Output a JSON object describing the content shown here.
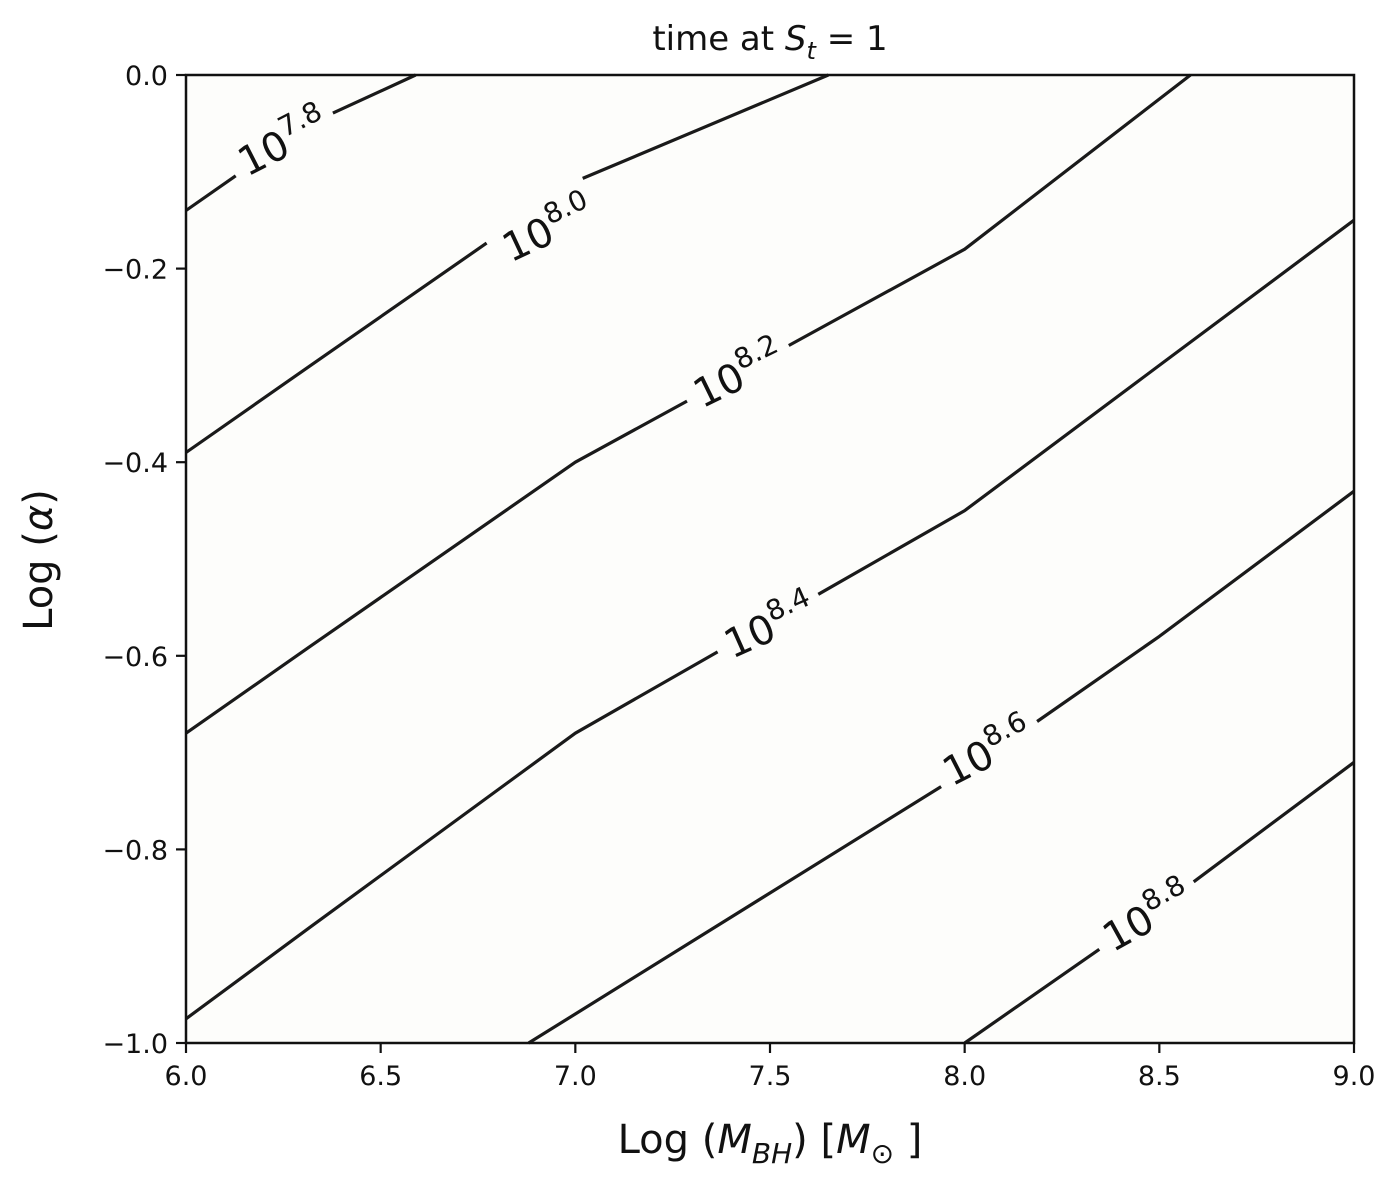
{
  "chart_data": {
    "type": "contour",
    "title_parts": [
      "time at ",
      "S",
      "t",
      " = 1"
    ],
    "xlabel_parts": [
      "Log (",
      "M",
      "BH",
      ") [",
      "M",
      "⊙",
      " ]"
    ],
    "ylabel_parts": [
      "Log (",
      "α",
      ")"
    ],
    "xlim": [
      6.0,
      9.0
    ],
    "ylim": [
      -1.0,
      0.0
    ],
    "xticks": [
      "6.0",
      "6.5",
      "7.0",
      "7.5",
      "8.0",
      "8.5",
      "9.0"
    ],
    "yticks": [
      "0.0",
      "−0.2",
      "−0.4",
      "−0.6",
      "−0.8",
      "−1.0"
    ],
    "grid": false,
    "line_color": "#1a1a1a",
    "plot_background": "#fdfdfb",
    "contours": [
      {
        "base": "10",
        "exponent": "7.8",
        "points": [
          [
            6.0,
            -0.14
          ],
          [
            6.32,
            -0.05
          ],
          [
            6.59,
            0.0
          ]
        ],
        "label_at": [
          6.25,
          -0.07
        ],
        "label_angle": -27
      },
      {
        "base": "10",
        "exponent": "8.0",
        "points": [
          [
            6.0,
            -0.39
          ],
          [
            6.32,
            -0.3
          ],
          [
            7.0,
            -0.11
          ],
          [
            7.65,
            0.0
          ]
        ],
        "label_at": [
          6.93,
          -0.16
        ],
        "label_angle": -25
      },
      {
        "base": "10",
        "exponent": "8.2",
        "points": [
          [
            6.0,
            -0.68
          ],
          [
            6.32,
            -0.59
          ],
          [
            7.0,
            -0.4
          ],
          [
            8.0,
            -0.18
          ],
          [
            8.58,
            0.0
          ]
        ],
        "label_at": [
          7.42,
          -0.31
        ],
        "label_angle": -26
      },
      {
        "base": "10",
        "exponent": "8.4",
        "points": [
          [
            6.0,
            -0.975
          ],
          [
            6.32,
            -0.88
          ],
          [
            7.0,
            -0.68
          ],
          [
            8.0,
            -0.45
          ],
          [
            8.5,
            -0.3
          ],
          [
            9.0,
            -0.15
          ]
        ],
        "label_at": [
          7.5,
          -0.57
        ],
        "label_angle": -24
      },
      {
        "base": "10",
        "exponent": "8.6",
        "points": [
          [
            6.88,
            -1.0
          ],
          [
            7.0,
            -0.97
          ],
          [
            8.0,
            -0.72
          ],
          [
            8.5,
            -0.58
          ],
          [
            9.0,
            -0.43
          ]
        ],
        "label_at": [
          8.06,
          -0.7
        ],
        "label_angle": -27
      },
      {
        "base": "10",
        "exponent": "8.8",
        "points": [
          [
            8.0,
            -1.0
          ],
          [
            8.5,
            -0.86
          ],
          [
            9.0,
            -0.71
          ]
        ],
        "label_at": [
          8.47,
          -0.87
        ],
        "label_angle": -29
      }
    ]
  }
}
